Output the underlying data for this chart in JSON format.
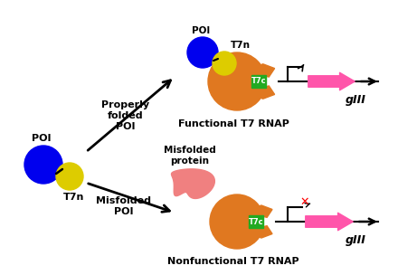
{
  "bg_color": "#ffffff",
  "blue_color": "#0000ee",
  "yellow_color": "#ddcc00",
  "orange_color": "#e07820",
  "orange_dark": "#c86010",
  "green_color": "#22aa22",
  "pink_color": "#ff55aa",
  "red_color": "#ff0000",
  "light_pink_color": "#f08080",
  "black": "#000000",
  "poi_label": "POI",
  "t7n_label": "T7n",
  "t7c_label": "T7c",
  "giii_label": "gIII",
  "properly_folded_label": "Properly\nfolded\nPOI",
  "misfolded_poi_label": "Misfolded\nPOI",
  "misfolded_protein_label": "Misfolded\nprotein",
  "functional_label": "Functional T7 RNAP",
  "nonfunctional_label": "Nonfunctional T7 RNAP"
}
